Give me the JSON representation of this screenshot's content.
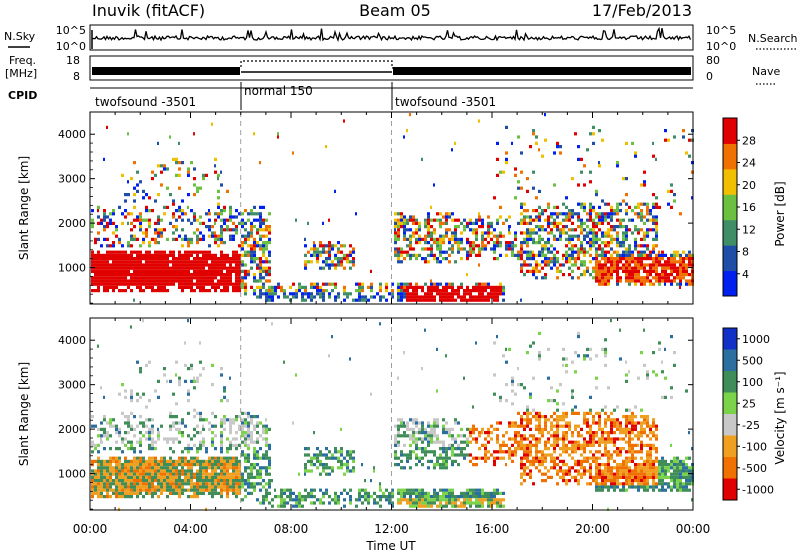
{
  "header": {
    "station": "Inuvik (fitACF)",
    "beam": "Beam 05",
    "date": "17/Feb/2013"
  },
  "left_labels": {
    "nsky": "N.Sky",
    "freq": "Freq.",
    "freq_unit": "[MHz]",
    "cpid": "CPID"
  },
  "right_labels": {
    "nsearch": "N.Search",
    "nave": "Nave"
  },
  "noise_axis": {
    "left_ticks": [
      "10^5",
      "10^0"
    ],
    "right_ticks": [
      "10^5",
      "10^0"
    ]
  },
  "freq_axis": {
    "left_ticks": [
      "18",
      "8"
    ],
    "right_ticks": [
      "80",
      "0"
    ]
  },
  "cpid_segments": [
    {
      "label": "twofsound -3501",
      "start_hour": 0,
      "end_hour": 6
    },
    {
      "label": "normal 150",
      "start_hour": 6,
      "end_hour": 12
    },
    {
      "label": "twofsound -3501",
      "start_hour": 12,
      "end_hour": 24
    }
  ],
  "panels": {
    "power": {
      "ylabel": "Slant Range [km]",
      "cbar_label": "Power [dB]"
    },
    "velocity": {
      "ylabel": "Slant Range [km]",
      "cbar_label": "Velocity [m s⁻¹]"
    }
  },
  "xaxis": {
    "label": "Time UT"
  },
  "chart_data": [
    {
      "type": "heatmap",
      "title": "Power",
      "xlabel": "Time UT",
      "ylabel": "Slant Range [km]",
      "xlim_hours": [
        0,
        24
      ],
      "ylim": [
        180,
        4500
      ],
      "x_tick_labels": [
        "00:00",
        "04:00",
        "08:00",
        "12:00",
        "16:00",
        "20:00",
        "00:00"
      ],
      "x_tick_hours": [
        0,
        4,
        8,
        12,
        16,
        20,
        24
      ],
      "y_ticks": [
        1000,
        2000,
        3000,
        4000
      ],
      "colorbar": {
        "label": "Power [dB]",
        "tick_labels": [
          "4",
          "8",
          "12",
          "16",
          "20",
          "24",
          "28"
        ],
        "colors": [
          "#0020f0",
          "#1f4ea8",
          "#3f8e66",
          "#6cc040",
          "#f0c000",
          "#f07000",
          "#e00000"
        ]
      },
      "mode_boundaries_hours": [
        6,
        12
      ]
    },
    {
      "type": "heatmap",
      "title": "Velocity",
      "xlabel": "Time UT",
      "ylabel": "Slant Range [km]",
      "xlim_hours": [
        0,
        24
      ],
      "ylim": [
        180,
        4500
      ],
      "x_tick_labels": [
        "00:00",
        "04:00",
        "08:00",
        "12:00",
        "16:00",
        "20:00",
        "00:00"
      ],
      "x_tick_hours": [
        0,
        4,
        8,
        12,
        16,
        20,
        24
      ],
      "y_ticks": [
        1000,
        2000,
        3000,
        4000
      ],
      "colorbar": {
        "label": "Velocity [m s⁻¹]",
        "tick_labels": [
          "1000",
          "500",
          "100",
          "25",
          "-25",
          "-100",
          "-500",
          "-1000"
        ],
        "colors": [
          "#1030c8",
          "#2a6fa0",
          "#3f8e5a",
          "#7bd34a",
          "#c8c8c8",
          "#f0a020",
          "#f07000",
          "#e00000"
        ]
      },
      "mode_boundaries_hours": [
        6,
        12
      ]
    }
  ]
}
